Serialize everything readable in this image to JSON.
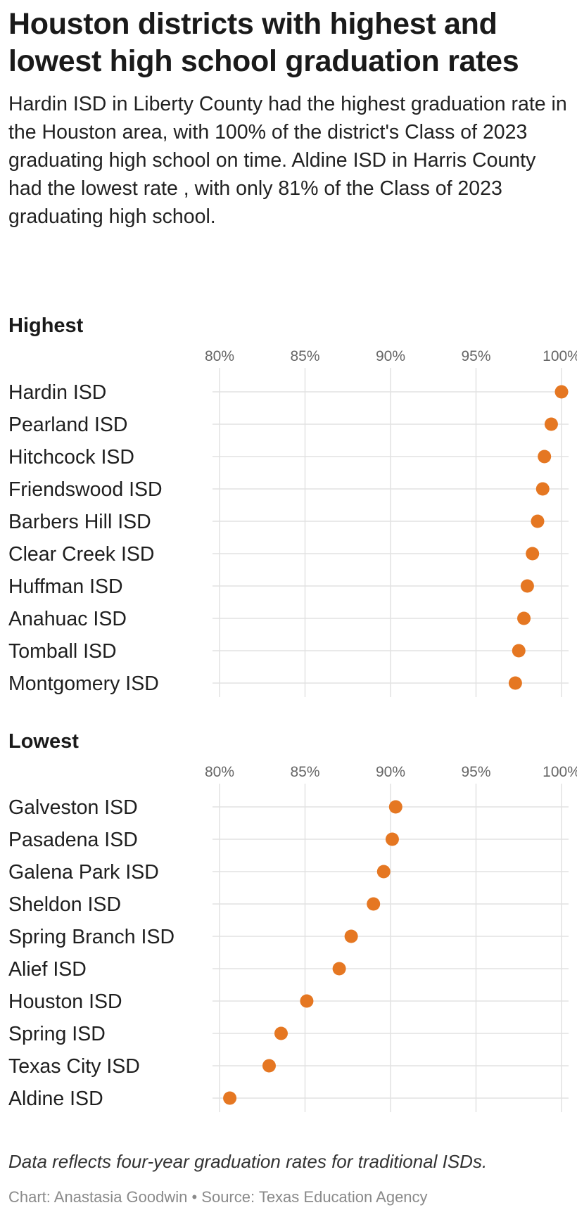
{
  "title": "Houston districts with highest and lowest high school graduation rates",
  "subtitle": "Hardin ISD in Liberty County had the highest graduation rate in the Houston area, with 100% of the district's Class of 2023 graduating high school on time. Aldine ISD in Harris County had the lowest rate , with only 81% of the Class of 2023 graduating high school.",
  "note": "Data reflects four-year graduation rates for traditional ISDs.",
  "credit": "Chart: Anastasia Goodwin • Source: Texas Education Agency",
  "colors": {
    "dot": "#e57722",
    "grid": "#e2e2e2"
  },
  "chart_data": [
    {
      "type": "scatter",
      "title": "Highest",
      "xlim": [
        80,
        100
      ],
      "xticks": [
        80,
        85,
        90,
        95,
        100
      ],
      "xtick_labels": [
        "80%",
        "85%",
        "90%",
        "95%",
        "100%"
      ],
      "grid": true,
      "categories": [
        "Hardin ISD",
        "Pearland ISD",
        "Hitchcock ISD",
        "Friendswood ISD",
        "Barbers Hill ISD",
        "Clear Creek ISD",
        "Huffman ISD",
        "Anahuac ISD",
        "Tomball ISD",
        "Montgomery ISD"
      ],
      "values": [
        100.0,
        99.4,
        99.0,
        98.9,
        98.6,
        98.3,
        98.0,
        97.8,
        97.5,
        97.3
      ]
    },
    {
      "type": "scatter",
      "title": "Lowest",
      "xlim": [
        80,
        100
      ],
      "xticks": [
        80,
        85,
        90,
        95,
        100
      ],
      "xtick_labels": [
        "80%",
        "85%",
        "90%",
        "95%",
        "100%"
      ],
      "grid": true,
      "categories": [
        "Galveston ISD",
        "Pasadena ISD",
        "Galena Park ISD",
        "Sheldon ISD",
        "Spring Branch ISD",
        "Alief ISD",
        "Houston ISD",
        "Spring ISD",
        "Texas City ISD",
        "Aldine ISD"
      ],
      "values": [
        90.3,
        90.1,
        89.6,
        89.0,
        87.7,
        87.0,
        85.1,
        83.6,
        82.9,
        80.6
      ]
    }
  ]
}
